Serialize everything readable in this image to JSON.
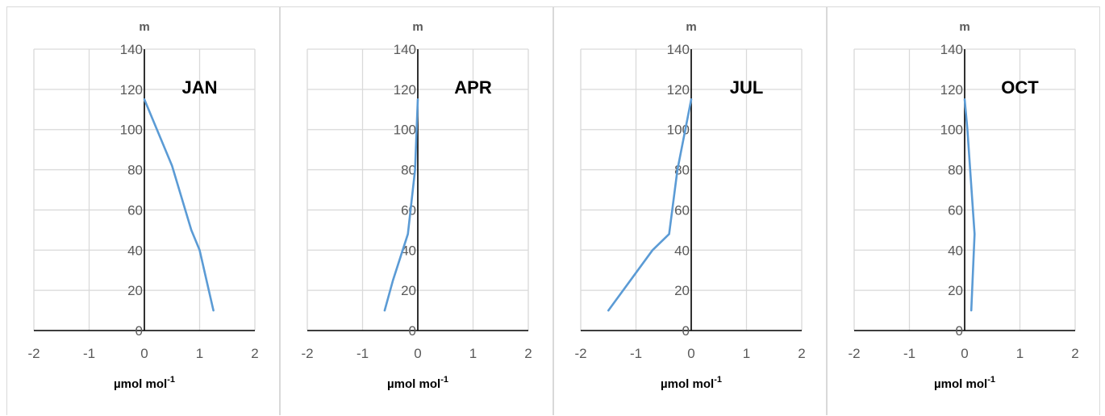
{
  "chart_data": [
    {
      "type": "line",
      "annotation": "JAN",
      "ylabel": "m",
      "xlabel": "µmol mol",
      "xlabel_superscript": "-1",
      "xlim": [
        -2,
        2
      ],
      "ylim": [
        0,
        140
      ],
      "xticks": [
        -2,
        -1,
        0,
        1,
        2
      ],
      "yticks": [
        0,
        20,
        40,
        60,
        80,
        100,
        120,
        140
      ],
      "grid": true,
      "color": "#5b9bd5",
      "series": [
        {
          "points": [
            [
              1.25,
              10
            ],
            [
              1.0,
              40
            ],
            [
              0.85,
              50
            ],
            [
              0.5,
              82
            ],
            [
              0.0,
              115
            ]
          ]
        }
      ]
    },
    {
      "type": "line",
      "annotation": "APR",
      "ylabel": "m",
      "xlabel": "µmol mol",
      "xlabel_superscript": "-1",
      "xlim": [
        -2,
        2
      ],
      "ylim": [
        0,
        140
      ],
      "xticks": [
        -2,
        -1,
        0,
        1,
        2
      ],
      "yticks": [
        0,
        20,
        40,
        60,
        80,
        100,
        120,
        140
      ],
      "grid": true,
      "color": "#5b9bd5",
      "series": [
        {
          "points": [
            [
              -0.6,
              10
            ],
            [
              -0.45,
              25
            ],
            [
              -0.18,
              48
            ],
            [
              -0.05,
              80
            ],
            [
              0.0,
              115
            ]
          ]
        }
      ]
    },
    {
      "type": "line",
      "annotation": "JUL",
      "ylabel": "m",
      "xlabel": "µmol mol",
      "xlabel_superscript": "-1",
      "xlim": [
        -2,
        2
      ],
      "ylim": [
        0,
        140
      ],
      "xticks": [
        -2,
        -1,
        0,
        1,
        2
      ],
      "yticks": [
        0,
        20,
        40,
        60,
        80,
        100,
        120,
        140
      ],
      "grid": true,
      "color": "#5b9bd5",
      "series": [
        {
          "points": [
            [
              -1.5,
              10
            ],
            [
              -0.7,
              40
            ],
            [
              -0.4,
              48
            ],
            [
              -0.25,
              80
            ],
            [
              0.0,
              115
            ]
          ]
        }
      ]
    },
    {
      "type": "line",
      "annotation": "OCT",
      "ylabel": "m",
      "xlabel": "µmol mol",
      "xlabel_superscript": "-1",
      "xlim": [
        -2,
        2
      ],
      "ylim": [
        0,
        140
      ],
      "xticks": [
        -2,
        -1,
        0,
        1,
        2
      ],
      "yticks": [
        0,
        20,
        40,
        60,
        80,
        100,
        120,
        140
      ],
      "grid": true,
      "color": "#5b9bd5",
      "series": [
        {
          "points": [
            [
              0.12,
              10
            ],
            [
              0.18,
              48
            ],
            [
              0.05,
              100
            ],
            [
              0.0,
              115
            ]
          ]
        }
      ]
    }
  ]
}
